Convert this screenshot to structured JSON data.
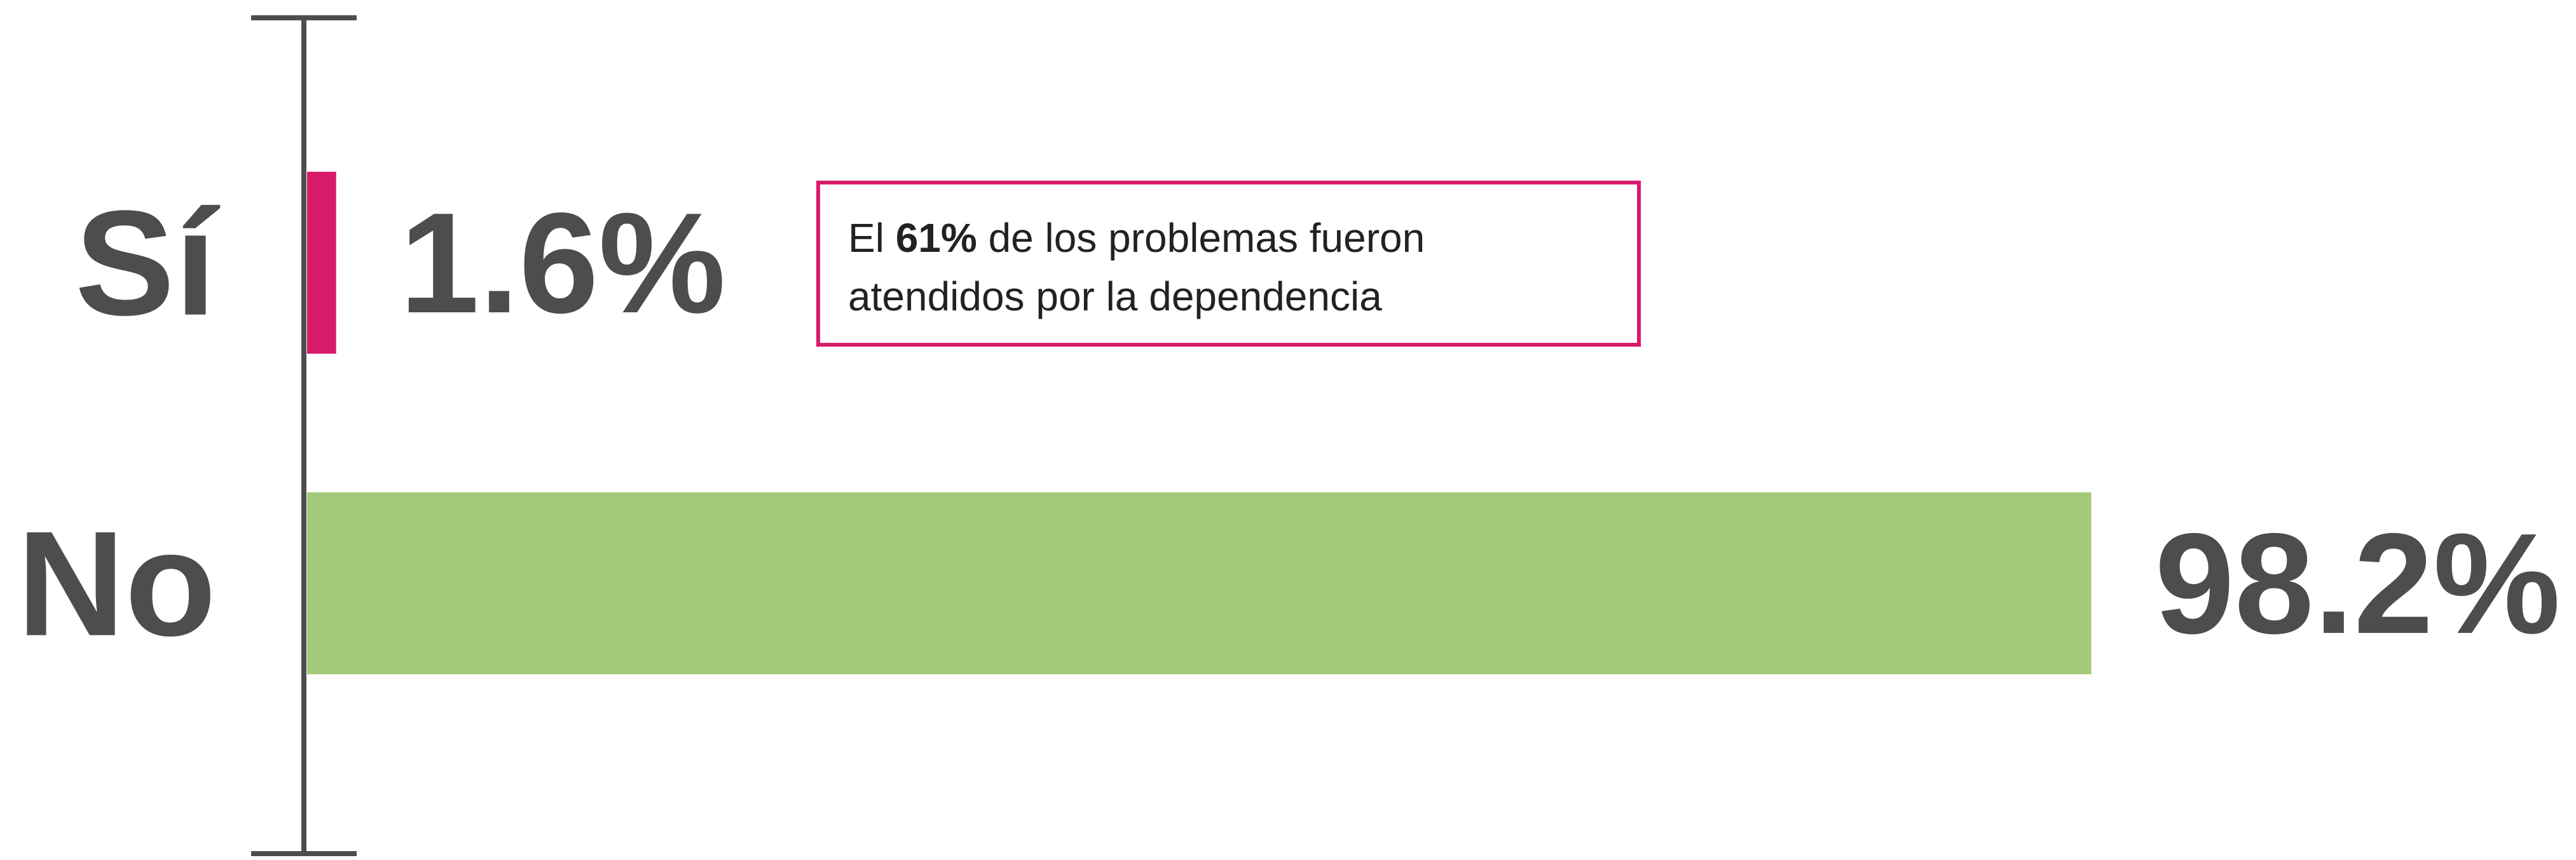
{
  "chart_data": {
    "type": "bar",
    "orientation": "horizontal",
    "categories": [
      "Sí",
      "No"
    ],
    "values": [
      1.6,
      98.2
    ],
    "value_labels": [
      "1.6%",
      "98.2%"
    ],
    "colors": [
      "#d81b6b",
      "#a3c97a"
    ],
    "annotation": {
      "text_before": "El ",
      "emphasis": "61%",
      "text_after": " de los problemas fueron atendidos por la dependencia"
    }
  }
}
